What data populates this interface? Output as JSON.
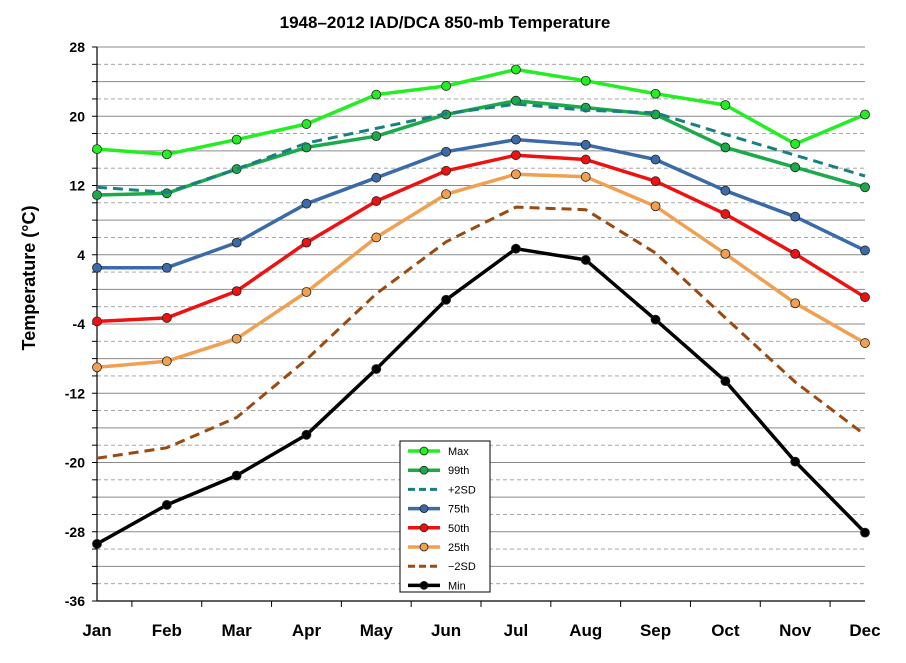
{
  "chart_data": {
    "type": "line",
    "title": "1948–2012 IAD/DCA 850-mb Temperature",
    "ylabel": "Temperature (°C)",
    "xlabel": "",
    "categories": [
      "Jan",
      "Feb",
      "Mar",
      "Apr",
      "May",
      "Jun",
      "Jul",
      "Aug",
      "Sep",
      "Oct",
      "Nov",
      "Dec"
    ],
    "ylim": [
      -36,
      28
    ],
    "yticks": [
      -36,
      -28,
      -20,
      -12,
      -4,
      4,
      12,
      20,
      28
    ],
    "grid": true,
    "legend_position": "bottom-center",
    "series": [
      {
        "name": "Max",
        "color": "#22ee22",
        "style": "solid",
        "marker": true,
        "values": [
          16.2,
          15.6,
          17.3,
          19.1,
          22.5,
          23.5,
          25.4,
          24.1,
          22.6,
          21.3,
          16.8,
          20.2
        ]
      },
      {
        "name": "99th",
        "color": "#1aaa4a",
        "style": "solid",
        "marker": true,
        "values": [
          10.9,
          11.1,
          13.9,
          16.4,
          17.7,
          20.2,
          21.8,
          21.0,
          20.2,
          16.4,
          14.1,
          11.8
        ]
      },
      {
        "name": "+2SD",
        "color": "#1a7f7f",
        "style": "dashed",
        "marker": false,
        "values": [
          11.8,
          11.2,
          13.9,
          16.9,
          18.6,
          20.3,
          21.4,
          20.7,
          20.4,
          17.9,
          15.5,
          13.1
        ]
      },
      {
        "name": "75th",
        "color": "#3b6aa8",
        "style": "solid",
        "marker": true,
        "values": [
          2.5,
          2.5,
          5.4,
          9.9,
          12.9,
          15.9,
          17.3,
          16.7,
          15.0,
          11.4,
          8.4,
          4.5
        ]
      },
      {
        "name": "50th",
        "color": "#ee1111",
        "style": "solid",
        "marker": true,
        "values": [
          -3.7,
          -3.3,
          -0.2,
          5.4,
          10.2,
          13.7,
          15.5,
          15.0,
          12.5,
          8.7,
          4.1,
          -0.9
        ]
      },
      {
        "name": "25th",
        "color": "#f0a050",
        "style": "solid",
        "marker": true,
        "values": [
          -9.0,
          -8.3,
          -5.7,
          -0.3,
          6.0,
          11.0,
          13.3,
          13.0,
          9.6,
          4.1,
          -1.6,
          -6.2
        ]
      },
      {
        "name": "−2SD",
        "color": "#9a4a10",
        "style": "dashed",
        "marker": false,
        "values": [
          -19.5,
          -18.3,
          -14.8,
          -8.1,
          -0.5,
          5.5,
          9.5,
          9.2,
          4.2,
          -3.3,
          -10.7,
          -16.8
        ]
      },
      {
        "name": "Min",
        "color": "#000000",
        "style": "solid",
        "marker": true,
        "values": [
          -29.4,
          -24.9,
          -21.5,
          -16.8,
          -9.2,
          -1.2,
          4.7,
          3.4,
          -3.5,
          -10.6,
          -19.9,
          -28.1
        ]
      }
    ]
  }
}
